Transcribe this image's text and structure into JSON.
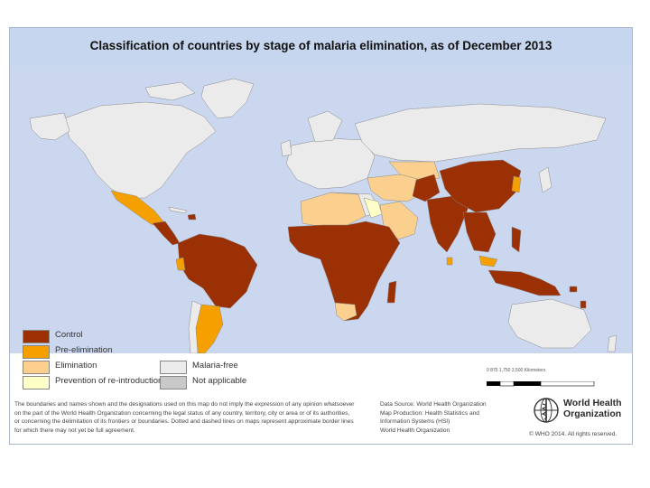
{
  "title": "Classification of countries by stage of malaria elimination, as of December 2013",
  "colors": {
    "ocean": "#cad7ef",
    "control": "#9a3004",
    "pre_elimination": "#f5a000",
    "elimination": "#fbcf8e",
    "prevention": "#ffffc8",
    "malaria_free": "#ebebeb",
    "not_applicable": "#c8c8c8",
    "border": "#7a7a7a"
  },
  "legend": {
    "control": "Control",
    "pre_elimination": "Pre-elimination",
    "elimination": "Elimination",
    "prevention": "Prevention of re-introduction",
    "malaria_free": "Malaria-free",
    "not_applicable": "Not applicable"
  },
  "scale": {
    "label": "0    875   1,750         3,500 Kilometers"
  },
  "disclaimer": [
    "The boundaries and names shown and the designations used on this map do not imply the expression of any opinion whatsoever",
    "on the part of the World Health Organization concerning the legal status of any country, territory, city or area or of its authorities,",
    "or concerning the delimitation of its frontiers or boundaries. Dotted and dashed lines on maps represent approximate border lines",
    "for which there may not yet be full agreement."
  ],
  "sources": [
    "Data Source: World Health Organization",
    "Map Production: Health Statistics and",
    "Information Systems (HSI)",
    "World Health Organization"
  ],
  "who": {
    "name_line1": "World Health",
    "name_line2": "Organization",
    "copyright": "© WHO 2014. All rights reserved."
  }
}
